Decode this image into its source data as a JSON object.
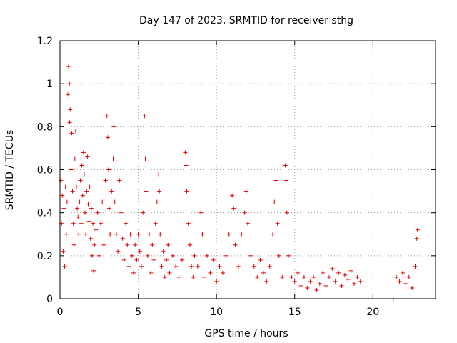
{
  "chart_data": {
    "type": "scatter",
    "title": "Day 147 of 2023, SRMTID for receiver sthg",
    "xlabel": "GPS time / hours",
    "ylabel": "SRMTID / TECUs",
    "xlim": [
      0,
      24
    ],
    "ylim": [
      0,
      1.2
    ],
    "xticks": [
      0,
      5,
      10,
      15,
      20
    ],
    "xtick_labels": [
      "0",
      "5",
      "10",
      "15",
      "20"
    ],
    "yticks": [
      0,
      0.2,
      0.4,
      0.6,
      0.8,
      1.0,
      1.2
    ],
    "ytick_labels": [
      "0",
      "0.2",
      "0.4",
      "0.6",
      "0.8",
      "1",
      "1.2"
    ],
    "grid": true,
    "marker": "plus",
    "color": "#e00000",
    "series": [
      {
        "name": "SRMTID",
        "points": [
          [
            0.05,
            0.55
          ],
          [
            0.1,
            0.35
          ],
          [
            0.15,
            0.48
          ],
          [
            0.2,
            0.22
          ],
          [
            0.25,
            0.42
          ],
          [
            0.3,
            0.15
          ],
          [
            0.35,
            0.52
          ],
          [
            0.4,
            0.3
          ],
          [
            0.45,
            0.45
          ],
          [
            0.5,
            0.95
          ],
          [
            0.55,
            1.08
          ],
          [
            0.6,
            1.0
          ],
          [
            0.62,
            0.82
          ],
          [
            0.65,
            0.88
          ],
          [
            0.7,
            0.6
          ],
          [
            0.75,
            0.77
          ],
          [
            0.8,
            0.5
          ],
          [
            0.85,
            0.35
          ],
          [
            0.9,
            0.25
          ],
          [
            0.95,
            0.65
          ],
          [
            1.0,
            0.78
          ],
          [
            1.05,
            0.52
          ],
          [
            1.1,
            0.42
          ],
          [
            1.15,
            0.38
          ],
          [
            1.2,
            0.3
          ],
          [
            1.25,
            0.45
          ],
          [
            1.3,
            0.55
          ],
          [
            1.35,
            0.35
          ],
          [
            1.4,
            0.62
          ],
          [
            1.45,
            0.48
          ],
          [
            1.5,
            0.68
          ],
          [
            1.55,
            0.58
          ],
          [
            1.6,
            0.4
          ],
          [
            1.65,
            0.3
          ],
          [
            1.7,
            0.5
          ],
          [
            1.75,
            0.66
          ],
          [
            1.8,
            0.44
          ],
          [
            1.85,
            0.36
          ],
          [
            1.9,
            0.52
          ],
          [
            1.95,
            0.28
          ],
          [
            2.0,
            0.42
          ],
          [
            2.05,
            0.2
          ],
          [
            2.1,
            0.35
          ],
          [
            2.15,
            0.13
          ],
          [
            2.2,
            0.25
          ],
          [
            2.3,
            0.32
          ],
          [
            2.4,
            0.4
          ],
          [
            2.5,
            0.2
          ],
          [
            2.6,
            0.35
          ],
          [
            2.7,
            0.45
          ],
          [
            2.8,
            0.25
          ],
          [
            2.9,
            0.55
          ],
          [
            3.0,
            0.85
          ],
          [
            3.05,
            0.75
          ],
          [
            3.1,
            0.6
          ],
          [
            3.15,
            0.42
          ],
          [
            3.2,
            0.3
          ],
          [
            3.3,
            0.5
          ],
          [
            3.4,
            0.65
          ],
          [
            3.45,
            0.8
          ],
          [
            3.5,
            0.45
          ],
          [
            3.6,
            0.3
          ],
          [
            3.7,
            0.22
          ],
          [
            3.8,
            0.55
          ],
          [
            3.9,
            0.4
          ],
          [
            4.0,
            0.28
          ],
          [
            4.1,
            0.18
          ],
          [
            4.2,
            0.35
          ],
          [
            4.3,
            0.25
          ],
          [
            4.4,
            0.15
          ],
          [
            4.5,
            0.3
          ],
          [
            4.6,
            0.2
          ],
          [
            4.7,
            0.12
          ],
          [
            4.8,
            0.25
          ],
          [
            4.9,
            0.18
          ],
          [
            5.0,
            0.3
          ],
          [
            5.1,
            0.22
          ],
          [
            5.2,
            0.15
          ],
          [
            5.3,
            0.4
          ],
          [
            5.4,
            0.85
          ],
          [
            5.45,
            0.65
          ],
          [
            5.5,
            0.5
          ],
          [
            5.6,
            0.2
          ],
          [
            5.7,
            0.3
          ],
          [
            5.8,
            0.12
          ],
          [
            5.9,
            0.25
          ],
          [
            6.0,
            0.18
          ],
          [
            6.1,
            0.35
          ],
          [
            6.2,
            0.45
          ],
          [
            6.3,
            0.58
          ],
          [
            6.35,
            0.5
          ],
          [
            6.4,
            0.3
          ],
          [
            6.5,
            0.15
          ],
          [
            6.6,
            0.22
          ],
          [
            6.7,
            0.1
          ],
          [
            6.8,
            0.18
          ],
          [
            6.9,
            0.25
          ],
          [
            7.0,
            0.12
          ],
          [
            7.2,
            0.2
          ],
          [
            7.4,
            0.15
          ],
          [
            7.6,
            0.1
          ],
          [
            7.8,
            0.18
          ],
          [
            8.0,
            0.68
          ],
          [
            8.05,
            0.62
          ],
          [
            8.1,
            0.5
          ],
          [
            8.2,
            0.35
          ],
          [
            8.3,
            0.25
          ],
          [
            8.4,
            0.15
          ],
          [
            8.5,
            0.1
          ],
          [
            8.6,
            0.2
          ],
          [
            8.8,
            0.15
          ],
          [
            9.0,
            0.4
          ],
          [
            9.1,
            0.3
          ],
          [
            9.2,
            0.1
          ],
          [
            9.4,
            0.2
          ],
          [
            9.6,
            0.12
          ],
          [
            9.8,
            0.18
          ],
          [
            10.0,
            0.08
          ],
          [
            10.2,
            0.15
          ],
          [
            10.4,
            0.12
          ],
          [
            10.6,
            0.2
          ],
          [
            10.8,
            0.3
          ],
          [
            11.0,
            0.48
          ],
          [
            11.1,
            0.42
          ],
          [
            11.2,
            0.25
          ],
          [
            11.4,
            0.15
          ],
          [
            11.6,
            0.3
          ],
          [
            11.8,
            0.4
          ],
          [
            11.9,
            0.5
          ],
          [
            12.0,
            0.35
          ],
          [
            12.2,
            0.2
          ],
          [
            12.4,
            0.15
          ],
          [
            12.6,
            0.1
          ],
          [
            12.8,
            0.18
          ],
          [
            13.0,
            0.12
          ],
          [
            13.2,
            0.08
          ],
          [
            13.4,
            0.15
          ],
          [
            13.6,
            0.3
          ],
          [
            13.7,
            0.45
          ],
          [
            13.8,
            0.55
          ],
          [
            13.9,
            0.35
          ],
          [
            14.0,
            0.2
          ],
          [
            14.2,
            0.1
          ],
          [
            14.4,
            0.62
          ],
          [
            14.45,
            0.55
          ],
          [
            14.5,
            0.4
          ],
          [
            14.6,
            0.2
          ],
          [
            14.8,
            0.1
          ],
          [
            15.0,
            0.08
          ],
          [
            15.2,
            0.12
          ],
          [
            15.4,
            0.06
          ],
          [
            15.6,
            0.1
          ],
          [
            15.8,
            0.05
          ],
          [
            16.0,
            0.08
          ],
          [
            16.2,
            0.1
          ],
          [
            16.4,
            0.04
          ],
          [
            16.6,
            0.07
          ],
          [
            16.8,
            0.12
          ],
          [
            17.0,
            0.06
          ],
          [
            17.2,
            0.1
          ],
          [
            17.4,
            0.14
          ],
          [
            17.6,
            0.08
          ],
          [
            17.8,
            0.12
          ],
          [
            18.0,
            0.06
          ],
          [
            18.2,
            0.11
          ],
          [
            18.4,
            0.09
          ],
          [
            18.6,
            0.13
          ],
          [
            18.8,
            0.07
          ],
          [
            19.0,
            0.1
          ],
          [
            19.2,
            0.08
          ],
          [
            21.3,
            0.0
          ],
          [
            21.5,
            0.1
          ],
          [
            21.7,
            0.08
          ],
          [
            21.9,
            0.12
          ],
          [
            22.1,
            0.07
          ],
          [
            22.3,
            0.1
          ],
          [
            22.5,
            0.05
          ],
          [
            22.7,
            0.15
          ],
          [
            22.8,
            0.28
          ],
          [
            22.85,
            0.32
          ]
        ]
      }
    ]
  }
}
